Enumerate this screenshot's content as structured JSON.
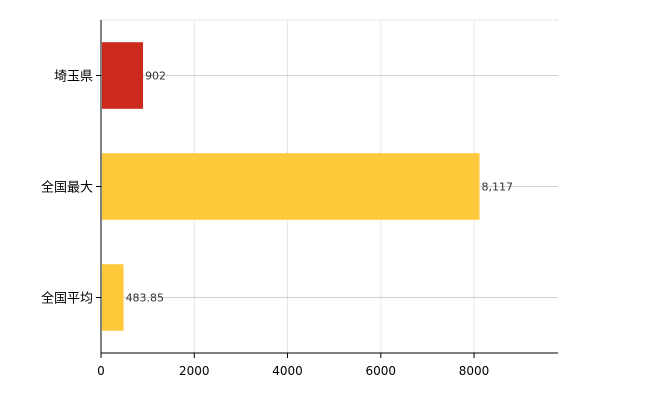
{
  "chart_data": {
    "type": "bar",
    "orientation": "horizontal",
    "categories": [
      "埼玉県",
      "全国最大",
      "全国平均"
    ],
    "values": [
      902,
      8117,
      483.85
    ],
    "data_labels": [
      "902",
      "8,117",
      "483.85"
    ],
    "bar_colors": [
      "#cc2a1c",
      "#ffc93c",
      "#ffc93c"
    ],
    "x_ticks": [
      "0",
      "2000",
      "4000",
      "6000",
      "8000"
    ],
    "x_tick_values": [
      0,
      2000,
      4000,
      6000,
      8000
    ],
    "xlim": [
      0,
      9800
    ],
    "grid": true
  }
}
